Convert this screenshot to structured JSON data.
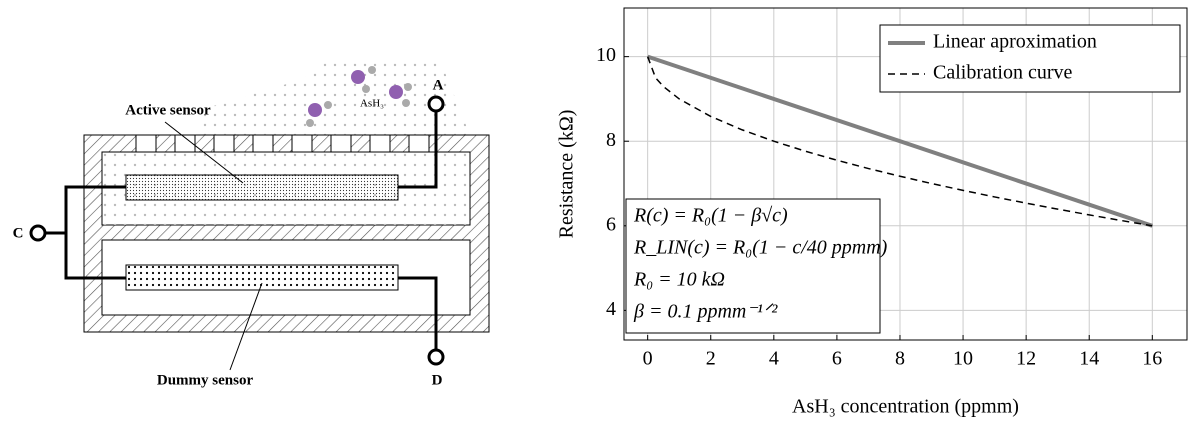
{
  "diagram": {
    "active_label": "Active sensor",
    "dummy_label": "Dummy sensor",
    "gas_label": "AsH₃",
    "terminals": [
      "A",
      "C",
      "D"
    ]
  },
  "chart_data": {
    "type": "line",
    "xlabel": "AsH₃ concentration (ppmm)",
    "ylabel": "Resistance (kΩ)",
    "xlim": [
      -0.75,
      17.1
    ],
    "ylim": [
      3.3,
      11.15
    ],
    "xticks": [
      0,
      2,
      4,
      6,
      8,
      10,
      12,
      14,
      16
    ],
    "yticks": [
      4,
      6,
      8,
      10
    ],
    "grid": true,
    "legend": "upper right",
    "series": [
      {
        "name": "Linear aproximation",
        "color": "#808080",
        "dash": false,
        "x": [
          0,
          16
        ],
        "values": [
          10,
          6
        ]
      },
      {
        "name": "Calibration curve",
        "color": "#000000",
        "dash": true,
        "x": [
          0,
          0.25,
          0.5,
          1,
          2,
          3,
          4,
          5,
          6,
          7,
          8,
          9,
          10,
          11,
          12,
          13,
          14,
          15,
          16
        ],
        "values": [
          10,
          9.5,
          9.293,
          9,
          8.586,
          8.268,
          8,
          7.764,
          7.551,
          7.354,
          7.172,
          7,
          6.838,
          6.683,
          6.536,
          6.394,
          6.258,
          6.127,
          6
        ]
      }
    ],
    "annotation": [
      "R(c) = R₀(1 − β√c)",
      "R_LIN(c) = R₀(1 − c/40 ppmm)",
      "R₀ = 10 kΩ",
      "β = 0.1 ppmm⁻¹ᐟ²"
    ]
  }
}
